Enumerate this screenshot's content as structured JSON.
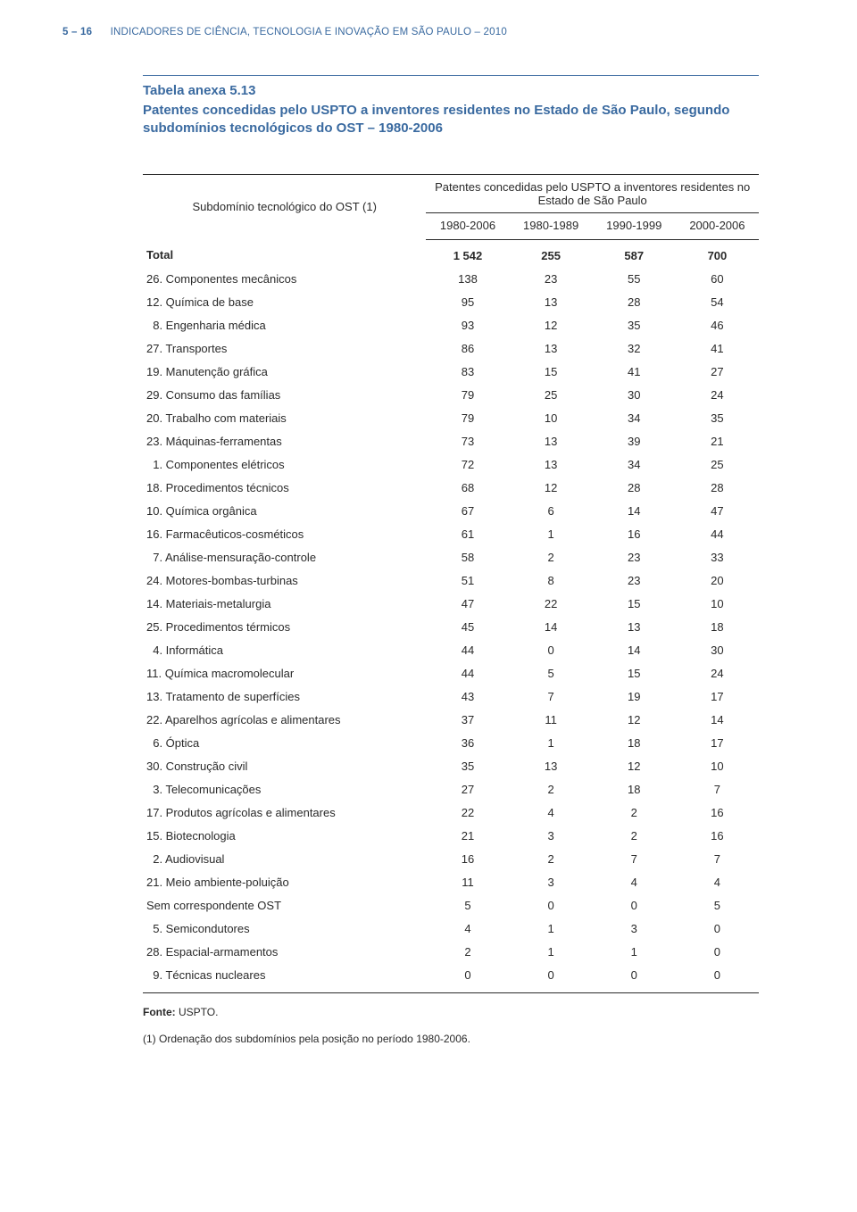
{
  "colors": {
    "accent": "#3a6aa0",
    "text": "#2a2a2a",
    "rule": "#2a2a2a",
    "background": "#ffffff"
  },
  "typography": {
    "body_family": "Helvetica Neue, Helvetica, Arial, sans-serif",
    "header_fontsize_pt": 11.5,
    "title_fontsize_pt": 15,
    "table_fontsize_pt": 13,
    "footer_fontsize_pt": 12
  },
  "header": {
    "page_ref": "5 – 16",
    "doc_title": "INDICADORES DE CIÊNCIA, TECNOLOGIA E INOVAÇÃO EM SÃO PAULO – 2010"
  },
  "title": {
    "label": "Tabela anexa 5.13",
    "text": "Patentes concedidas pelo USPTO a inventores residentes no Estado de São Paulo, segundo subdomínios tecnológicos do OST – 1980-2006"
  },
  "table": {
    "structure": "table",
    "row_header": "Subdomínio tecnológico do OST (1)",
    "spanner": "Patentes concedidas pelo USPTO a inventores residentes no Estado de São Paulo",
    "columns": [
      "1980-2006",
      "1980-1989",
      "1990-1999",
      "2000-2006"
    ],
    "column_widths_pct": [
      46,
      13.5,
      13.5,
      13.5,
      13.5
    ],
    "alignment": [
      "left",
      "center",
      "center",
      "center",
      "center"
    ],
    "total_row": {
      "label": "Total",
      "values": [
        "1 542",
        "255",
        "587",
        "700"
      ]
    },
    "rows": [
      {
        "label": "26. Componentes mecânicos",
        "values": [
          "138",
          "23",
          "55",
          "60"
        ]
      },
      {
        "label": "12. Química de base",
        "values": [
          "95",
          "13",
          "28",
          "54"
        ]
      },
      {
        "label": "  8. Engenharia médica",
        "values": [
          "93",
          "12",
          "35",
          "46"
        ]
      },
      {
        "label": "27. Transportes",
        "values": [
          "86",
          "13",
          "32",
          "41"
        ]
      },
      {
        "label": "19. Manutenção gráfica",
        "values": [
          "83",
          "15",
          "41",
          "27"
        ]
      },
      {
        "label": "29. Consumo das famílias",
        "values": [
          "79",
          "25",
          "30",
          "24"
        ]
      },
      {
        "label": "20. Trabalho com materiais",
        "values": [
          "79",
          "10",
          "34",
          "35"
        ]
      },
      {
        "label": "23. Máquinas-ferramentas",
        "values": [
          "73",
          "13",
          "39",
          "21"
        ]
      },
      {
        "label": "  1. Componentes elétricos",
        "values": [
          "72",
          "13",
          "34",
          "25"
        ]
      },
      {
        "label": "18. Procedimentos técnicos",
        "values": [
          "68",
          "12",
          "28",
          "28"
        ]
      },
      {
        "label": "10. Química orgânica",
        "values": [
          "67",
          "6",
          "14",
          "47"
        ]
      },
      {
        "label": "16. Farmacêuticos-cosméticos",
        "values": [
          "61",
          "1",
          "16",
          "44"
        ]
      },
      {
        "label": "  7. Análise-mensuração-controle",
        "values": [
          "58",
          "2",
          "23",
          "33"
        ]
      },
      {
        "label": "24. Motores-bombas-turbinas",
        "values": [
          "51",
          "8",
          "23",
          "20"
        ]
      },
      {
        "label": "14. Materiais-metalurgia",
        "values": [
          "47",
          "22",
          "15",
          "10"
        ]
      },
      {
        "label": "25. Procedimentos térmicos",
        "values": [
          "45",
          "14",
          "13",
          "18"
        ]
      },
      {
        "label": "  4. Informática",
        "values": [
          "44",
          "0",
          "14",
          "30"
        ]
      },
      {
        "label": "11. Química macromolecular",
        "values": [
          "44",
          "5",
          "15",
          "24"
        ]
      },
      {
        "label": "13. Tratamento de superfícies",
        "values": [
          "43",
          "7",
          "19",
          "17"
        ]
      },
      {
        "label": "22. Aparelhos agrícolas e alimentares",
        "values": [
          "37",
          "11",
          "12",
          "14"
        ]
      },
      {
        "label": "  6. Óptica",
        "values": [
          "36",
          "1",
          "18",
          "17"
        ]
      },
      {
        "label": "30. Construção civil",
        "values": [
          "35",
          "13",
          "12",
          "10"
        ]
      },
      {
        "label": "  3. Telecomunicações",
        "values": [
          "27",
          "2",
          "18",
          "7"
        ]
      },
      {
        "label": "17. Produtos agrícolas e alimentares",
        "values": [
          "22",
          "4",
          "2",
          "16"
        ]
      },
      {
        "label": "15. Biotecnologia",
        "values": [
          "21",
          "3",
          "2",
          "16"
        ]
      },
      {
        "label": "  2. Audiovisual",
        "values": [
          "16",
          "2",
          "7",
          "7"
        ]
      },
      {
        "label": "21. Meio ambiente-poluição",
        "values": [
          "11",
          "3",
          "4",
          "4"
        ]
      },
      {
        "label": "Sem correspondente OST",
        "values": [
          "5",
          "0",
          "0",
          "5"
        ]
      },
      {
        "label": "  5. Semicondutores",
        "values": [
          "4",
          "1",
          "3",
          "0"
        ]
      },
      {
        "label": "28. Espacial-armamentos",
        "values": [
          "2",
          "1",
          "1",
          "0"
        ]
      },
      {
        "label": "  9. Técnicas nucleares",
        "values": [
          "0",
          "0",
          "0",
          "0"
        ]
      }
    ]
  },
  "footer": {
    "source_label": "Fonte:",
    "source_value": "USPTO.",
    "note": "(1) Ordenação dos subdomínios pela posição no período 1980-2006."
  }
}
